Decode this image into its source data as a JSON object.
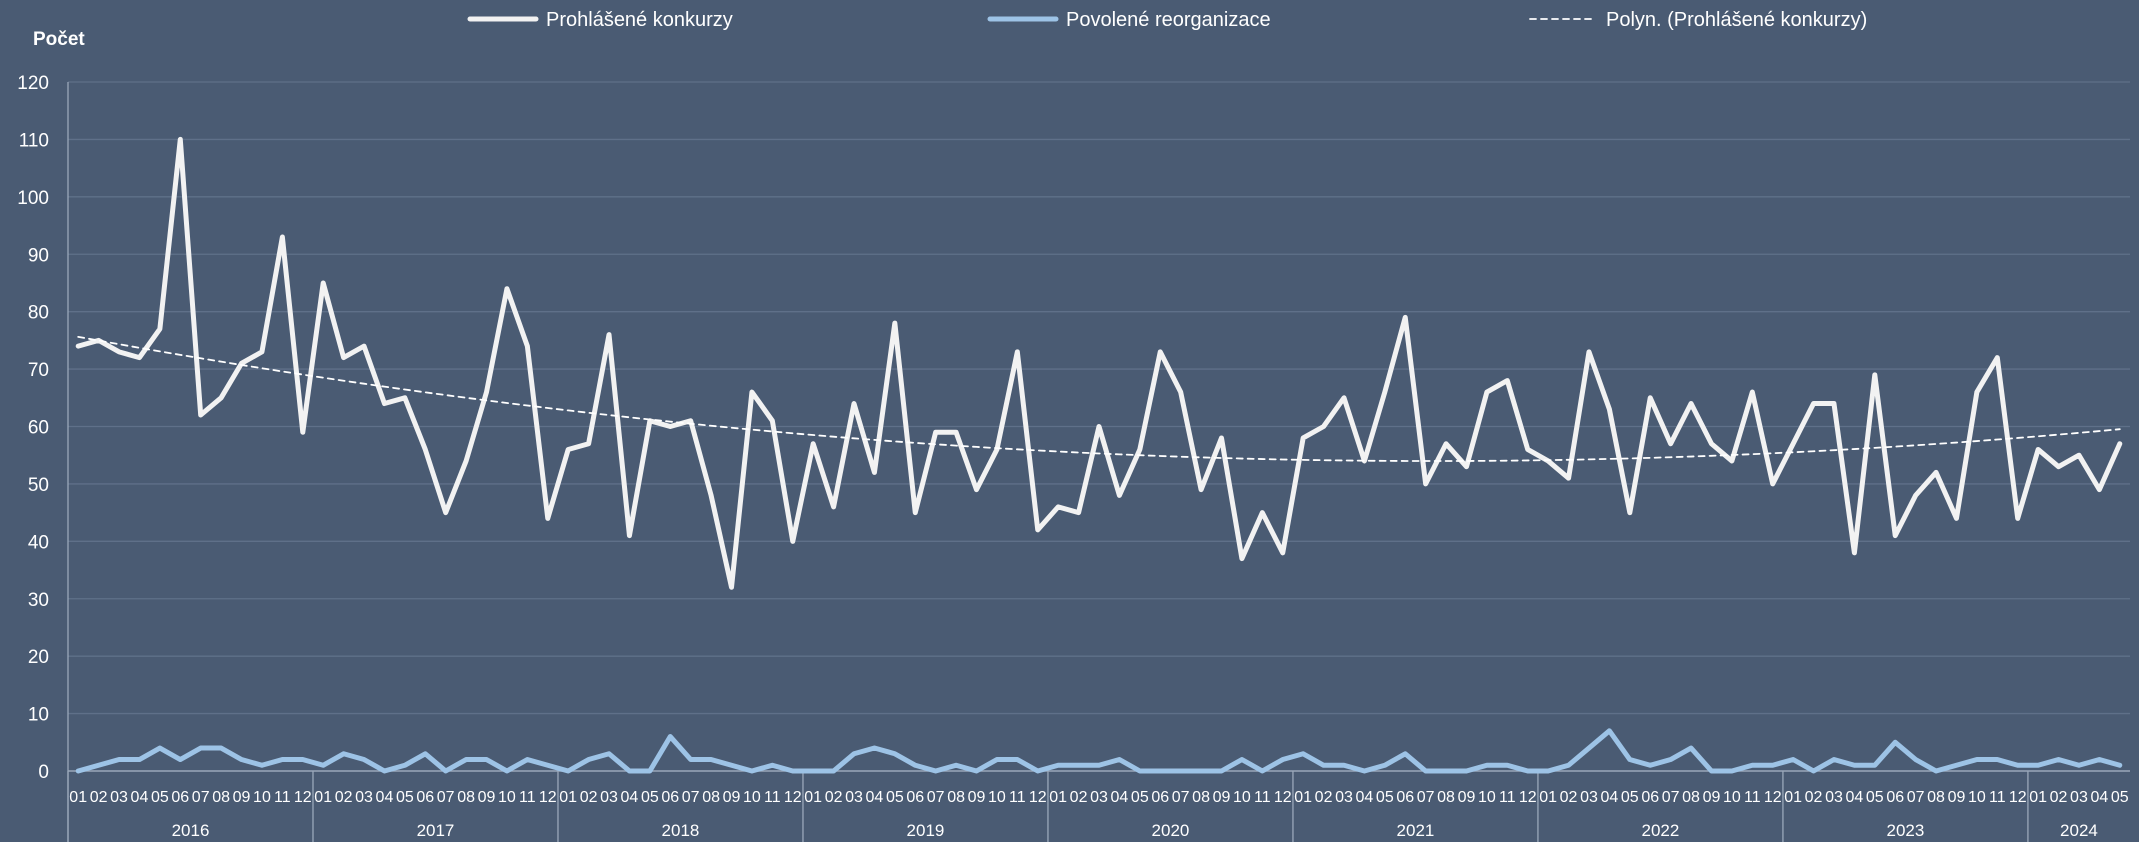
{
  "chart_data": {
    "type": "line",
    "ylabel": "Počet",
    "ylim": [
      0,
      120
    ],
    "yticks": [
      0,
      10,
      20,
      30,
      40,
      50,
      60,
      70,
      80,
      90,
      100,
      110,
      120
    ],
    "grid": true,
    "legend_placement": "top",
    "months": [
      "01",
      "02",
      "03",
      "04",
      "05",
      "06",
      "07",
      "08",
      "09",
      "10",
      "11",
      "12"
    ],
    "years": [
      {
        "label": "2016",
        "months": 12
      },
      {
        "label": "2017",
        "months": 12
      },
      {
        "label": "2018",
        "months": 12
      },
      {
        "label": "2019",
        "months": 12
      },
      {
        "label": "2020",
        "months": 12
      },
      {
        "label": "2021",
        "months": 12
      },
      {
        "label": "2022",
        "months": 12
      },
      {
        "label": "2023",
        "months": 12
      },
      {
        "label": "2024",
        "months": 5
      }
    ],
    "series": [
      {
        "name": "Prohlášené konkurzy",
        "color": "#f2f2f2",
        "style": "solid",
        "values": [
          74,
          75,
          73,
          72,
          77,
          110,
          62,
          65,
          71,
          73,
          93,
          59,
          85,
          72,
          74,
          64,
          65,
          56,
          45,
          54,
          66,
          84,
          74,
          44,
          56,
          57,
          76,
          41,
          61,
          60,
          61,
          48,
          32,
          66,
          61,
          40,
          57,
          46,
          64,
          52,
          78,
          45,
          59,
          59,
          49,
          56,
          73,
          42,
          46,
          45,
          60,
          48,
          56,
          73,
          66,
          49,
          58,
          37,
          45,
          38,
          58,
          60,
          65,
          54,
          66,
          79,
          50,
          57,
          53,
          66,
          68,
          56,
          54,
          51,
          73,
          63,
          45,
          65,
          57,
          64,
          57,
          54,
          66,
          50,
          57,
          64,
          64,
          38,
          69,
          41,
          48,
          52,
          44,
          66,
          72,
          44,
          56,
          53,
          55,
          49,
          57
        ]
      },
      {
        "name": "Povolené reorganizace",
        "color": "#9dc3e6",
        "style": "solid",
        "values": [
          0,
          1,
          2,
          2,
          4,
          2,
          4,
          4,
          2,
          1,
          2,
          2,
          1,
          3,
          2,
          0,
          1,
          3,
          0,
          2,
          2,
          0,
          2,
          1,
          0,
          2,
          3,
          0,
          0,
          6,
          2,
          2,
          1,
          0,
          1,
          0,
          0,
          0,
          3,
          4,
          3,
          1,
          0,
          1,
          0,
          2,
          2,
          0,
          1,
          1,
          1,
          2,
          0,
          0,
          0,
          0,
          0,
          2,
          0,
          2,
          3,
          1,
          1,
          0,
          1,
          3,
          0,
          0,
          0,
          1,
          1,
          0,
          0,
          1,
          4,
          7,
          2,
          1,
          2,
          4,
          0,
          0,
          1,
          1,
          2,
          0,
          2,
          1,
          1,
          5,
          2,
          0,
          1,
          2,
          2,
          1,
          1,
          2,
          1,
          2,
          1
        ]
      },
      {
        "name": "Polyn. (Prohlášené konkurzy)",
        "color": "#ffffff",
        "style": "dashed",
        "trend_of": 0
      }
    ]
  }
}
